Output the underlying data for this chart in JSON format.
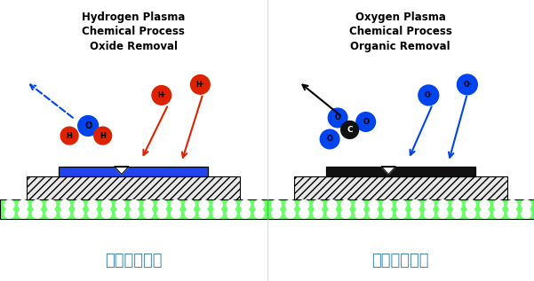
{
  "background_color": "#ffffff",
  "left_title": "Hydrogen Plasma\nChemical Process\nOxide Removal",
  "right_title": "Oxygen Plasma\nChemical Process\nOrganic Removal",
  "left_caption": "化学清洗工艺",
  "right_caption": "化学清洗工艺",
  "title_fontsize": 8.5,
  "caption_fontsize": 13,
  "atom_red": "#dd2200",
  "atom_blue": "#0044ee",
  "atom_black": "#111111",
  "green_color": "#66ff66",
  "blue_layer": "#2244ee",
  "black_layer": "#111111",
  "caption_color": "#4488aa"
}
